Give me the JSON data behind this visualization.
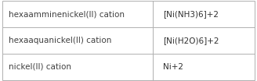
{
  "rows": [
    [
      "hexaamminenickel(II) cation",
      "[Ni(NH3)6]+2"
    ],
    [
      "hexaaquanickel(II) cation",
      "[Ni(H2O)6]+2"
    ],
    [
      "nickel(II) cation",
      "Ni+2"
    ]
  ],
  "col_split": 0.595,
  "bg_color": "#ffffff",
  "border_color": "#b0b0b0",
  "text_color_left": "#404040",
  "text_color_right": "#303030",
  "font_size": 7.5,
  "fig_width": 3.28,
  "fig_height": 1.04,
  "dpi": 100
}
